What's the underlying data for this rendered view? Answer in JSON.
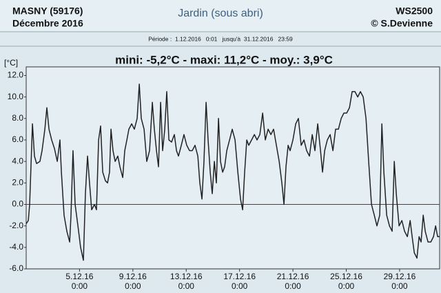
{
  "chart_data": {
    "type": "line",
    "header_left": [
      "MASNY (59176)",
      "Décembre 2016"
    ],
    "title": "Jardin (sous abri)",
    "header_right": [
      "WS2500",
      "© S.Devienne"
    ],
    "period": "Période :  1.12.2016   0:01   jusqu'à  31.12.2016   23:59",
    "subtitle": "mini:  -5,2°C - maxi: 11,2°C - moy.: 3,9°C",
    "y_label": "[°C]",
    "color": "#222222",
    "xlim": [
      0,
      31
    ],
    "ylim": [
      -6,
      12.8
    ],
    "xticks": [
      {
        "value": 4,
        "label": "5.12.16\n0:00"
      },
      {
        "value": 8,
        "label": "9.12.16\n0:00"
      },
      {
        "value": 12,
        "label": "13.12.16\n0:00"
      },
      {
        "value": 16,
        "label": "17.12.16\n0:00"
      },
      {
        "value": 20,
        "label": "21.12.16\n0:00"
      },
      {
        "value": 24,
        "label": "25.12.16\n0:00"
      },
      {
        "value": 28,
        "label": "29.12.16\n0:00"
      }
    ],
    "yticks": [
      {
        "value": 12,
        "label": "12.0"
      },
      {
        "value": 10,
        "label": "10.0"
      },
      {
        "value": 8,
        "label": "8.0"
      },
      {
        "value": 6,
        "label": "6.0"
      },
      {
        "value": 4,
        "label": "4.0"
      },
      {
        "value": 2,
        "label": "2.0"
      },
      {
        "value": 0,
        "label": "0.0"
      },
      {
        "value": -2,
        "label": "-2.0"
      },
      {
        "value": -4,
        "label": "-4.0"
      },
      {
        "value": -6,
        "label": "-6.0"
      }
    ],
    "x": [
      0,
      0.16,
      0.26,
      0.47,
      0.62,
      0.78,
      1.03,
      1.19,
      1.4,
      1.55,
      1.71,
      1.91,
      2.12,
      2.33,
      2.53,
      2.64,
      2.84,
      3.05,
      3.26,
      3.36,
      3.51,
      3.67,
      3.88,
      4.08,
      4.29,
      4.44,
      4.6,
      4.75,
      4.91,
      5.12,
      5.27,
      5.43,
      5.58,
      5.74,
      5.94,
      6.1,
      6.25,
      6.36,
      6.51,
      6.67,
      6.87,
      7.03,
      7.24,
      7.39,
      7.55,
      7.7,
      7.91,
      8.11,
      8.32,
      8.48,
      8.63,
      8.84,
      9.04,
      9.25,
      9.46,
      9.61,
      9.77,
      9.92,
      10.08,
      10.23,
      10.39,
      10.54,
      10.7,
      10.9,
      11.11,
      11.27,
      11.42,
      11.63,
      11.83,
      12.04,
      12.25,
      12.45,
      12.66,
      12.87,
      13.02,
      13.18,
      13.33,
      13.49,
      13.64,
      13.8,
      13.95,
      14.11,
      14.26,
      14.42,
      14.57,
      14.73,
      14.88,
      15.04,
      15.25,
      15.45,
      15.66,
      15.87,
      16.07,
      16.23,
      16.38,
      16.54,
      16.69,
      16.9,
      17.11,
      17.31,
      17.52,
      17.73,
      17.93,
      18.14,
      18.35,
      18.55,
      18.76,
      18.97,
      19.17,
      19.33,
      19.48,
      19.64,
      19.79,
      20.0,
      20.21,
      20.41,
      20.62,
      20.83,
      21.03,
      21.24,
      21.45,
      21.65,
      21.86,
      22.07,
      22.22,
      22.38,
      22.58,
      22.79,
      23.0,
      23.2,
      23.41,
      23.62,
      23.82,
      24.03,
      24.24,
      24.44,
      24.65,
      24.86,
      25.06,
      25.27,
      25.48,
      25.68,
      25.89,
      26.1,
      26.3,
      26.51,
      26.67,
      26.82,
      27.03,
      27.24,
      27.44,
      27.6,
      27.75,
      27.96,
      28.17,
      28.37,
      28.58,
      28.79,
      28.94,
      29.1,
      29.3,
      29.46,
      29.61,
      29.77,
      29.92,
      30.13,
      30.34,
      30.54,
      30.7,
      30.85,
      31.0
    ],
    "values": [
      -1.8,
      -1.5,
      0,
      7.5,
      4.5,
      3.8,
      4,
      5,
      7,
      9,
      7,
      6,
      5.2,
      4,
      6,
      3,
      -1,
      -2.5,
      -3.5,
      -1,
      5,
      0,
      -2,
      -4,
      -5.2,
      1,
      4.5,
      2,
      -0.5,
      0,
      -0.5,
      6,
      7.3,
      3,
      2.2,
      2,
      3,
      7,
      5,
      4,
      4.5,
      3.5,
      2.5,
      5,
      6,
      7,
      7.5,
      7,
      8,
      11.2,
      8,
      7,
      4,
      5,
      9.5,
      7,
      5,
      3.5,
      9.5,
      5,
      7,
      10.5,
      6,
      5.8,
      6.5,
      5,
      4.5,
      5.5,
      6.5,
      5.5,
      5,
      5,
      5.5,
      4.5,
      2,
      0.5,
      4,
      9.5,
      6,
      3,
      1,
      4,
      2,
      8,
      4,
      3,
      3.5,
      5,
      6,
      7,
      6,
      3,
      0.5,
      -0.5,
      3,
      6,
      5.5,
      6,
      6.5,
      6,
      6.5,
      8.5,
      6,
      7,
      6.5,
      7,
      5.5,
      4,
      2,
      0,
      3.5,
      5.5,
      5,
      6,
      7.5,
      8,
      5.5,
      6,
      5,
      4.5,
      6.5,
      5,
      7.5,
      5,
      3,
      5,
      6,
      6.5,
      5,
      7,
      7,
      8,
      8.5,
      8.5,
      9,
      10.5,
      10.5,
      10,
      10.5,
      10,
      8,
      4,
      0,
      -1,
      -2,
      -1,
      7.5,
      3,
      -1,
      -2,
      -2.5,
      4,
      1,
      -2,
      -1.5,
      -2.5,
      -3,
      -1.5,
      -3,
      -4.5,
      -5,
      -3,
      -3.5,
      -1,
      -2.5,
      -3.5,
      -3.5,
      -3,
      -2,
      -3,
      -3
    ]
  }
}
